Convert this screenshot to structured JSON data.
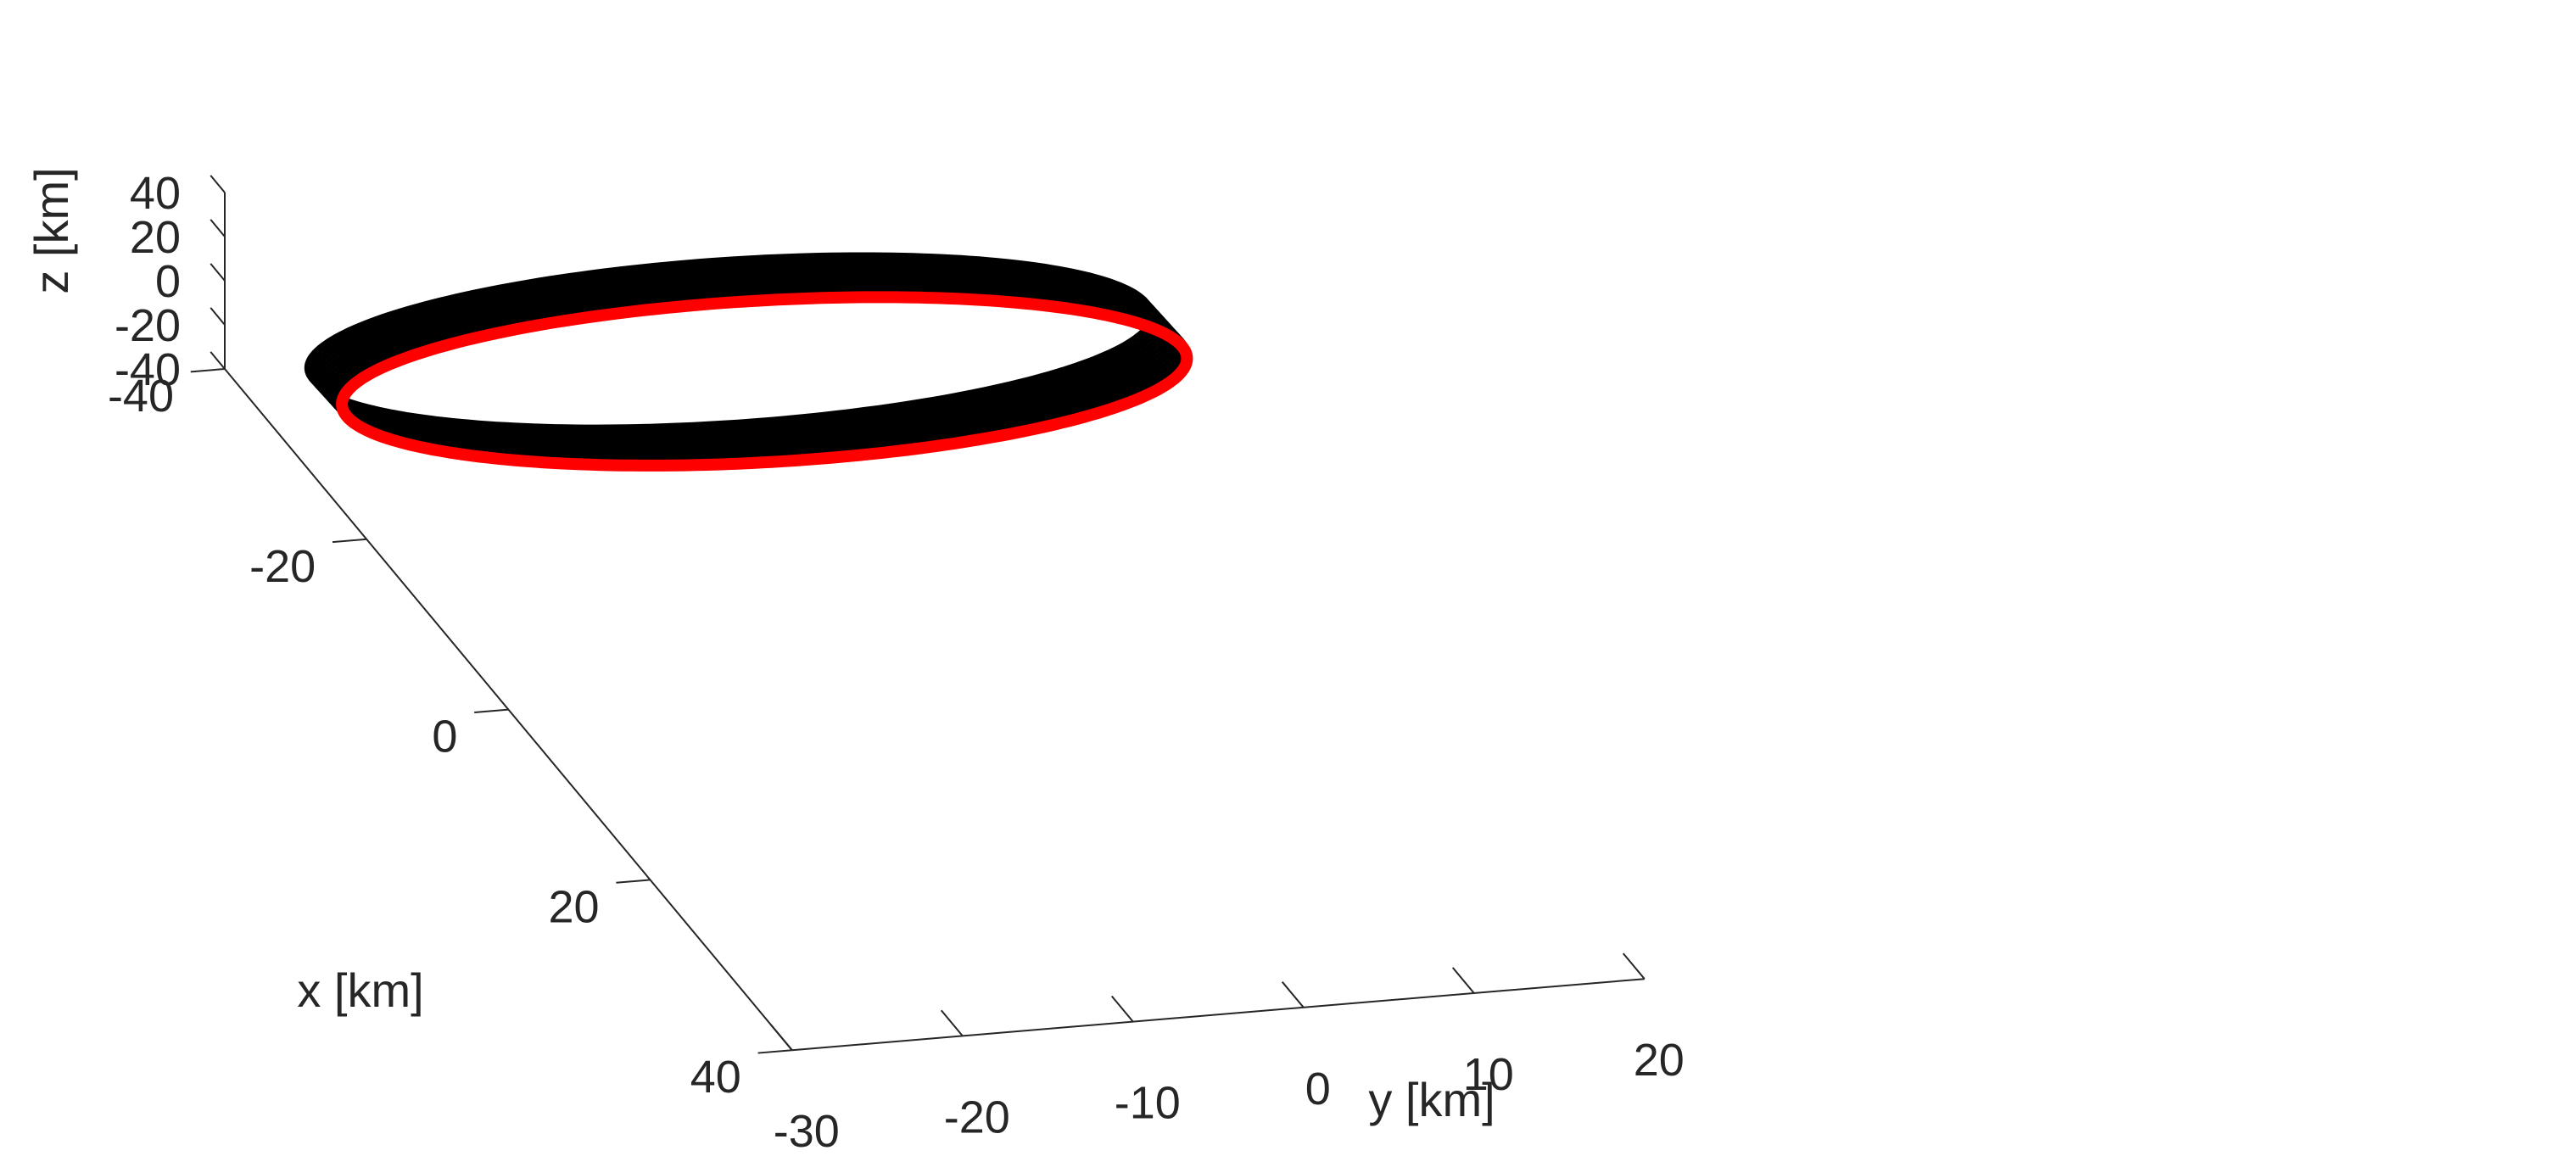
{
  "chart_data": {
    "type": "line",
    "projection": "3d",
    "xlabel": "x [km]",
    "ylabel": "y [km]",
    "zlabel": "z [km]",
    "xlim": [
      -40,
      40
    ],
    "ylim": [
      -30,
      20
    ],
    "zlim": [
      -40,
      40
    ],
    "xticks": [
      "-40",
      "-20",
      "0",
      "20",
      "40"
    ],
    "yticks": [
      "-30",
      "-20",
      "-10",
      "0",
      "10",
      "20"
    ],
    "zticks": [
      "40",
      "20",
      "0",
      "-20",
      "-40"
    ],
    "grid": false,
    "series": [
      {
        "color": "#000000",
        "style": "dense band of overlapping closed orbits",
        "center": {
          "x": -24,
          "y": -5,
          "z": 0
        },
        "semi_axis_x_km": 9,
        "semi_axis_y_km": 24.5,
        "inclination_z_km": 2,
        "band_spread_x_km": [
          -5,
          0
        ],
        "band_spread_z_km": [
          -0.8,
          0.8
        ]
      },
      {
        "color": "#ff0000",
        "style": "single closed orbit",
        "center": {
          "x": -24,
          "y": -5,
          "z": 0
        },
        "semi_axis_x_km": 9,
        "semi_axis_y_km": 24.5,
        "inclination_z_km": 0
      }
    ]
  }
}
